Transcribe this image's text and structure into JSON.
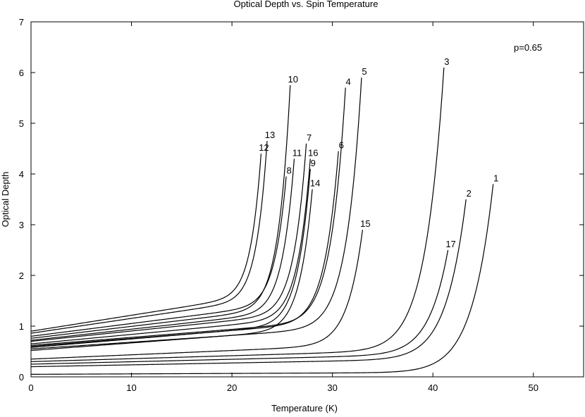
{
  "chart_data": {
    "type": "line",
    "title": "Optical Depth vs. Spin Temperature",
    "xlabel": "Temperature (K)",
    "ylabel": "Optical Depth",
    "xlim": [
      0,
      55
    ],
    "ylim": [
      0,
      7
    ],
    "xticks": [
      0,
      10,
      20,
      30,
      40,
      50
    ],
    "yticks": [
      0,
      1,
      2,
      3,
      4,
      5,
      6,
      7
    ],
    "grid": false,
    "annotation": "p=0.65",
    "series": [
      {
        "name": "1",
        "x0": 0,
        "y0": 0.05,
        "t_end": 46.0,
        "y_end": 3.8
      },
      {
        "name": "2",
        "x0": 0,
        "y0": 0.2,
        "t_end": 43.3,
        "y_end": 3.5
      },
      {
        "name": "3",
        "x0": 0,
        "y0": 0.3,
        "t_end": 41.1,
        "y_end": 6.1
      },
      {
        "name": "4",
        "x0": 0,
        "y0": 0.62,
        "t_end": 31.3,
        "y_end": 5.7
      },
      {
        "name": "5",
        "x0": 0,
        "y0": 0.55,
        "t_end": 32.9,
        "y_end": 5.9
      },
      {
        "name": "6",
        "x0": 0,
        "y0": 0.6,
        "t_end": 30.6,
        "y_end": 4.45
      },
      {
        "name": "7",
        "x0": 0,
        "y0": 0.7,
        "t_end": 27.4,
        "y_end": 4.6
      },
      {
        "name": "8",
        "x0": 0,
        "y0": 0.8,
        "t_end": 25.4,
        "y_end": 3.95
      },
      {
        "name": "9",
        "x0": 0,
        "y0": 0.58,
        "t_end": 27.8,
        "y_end": 4.1
      },
      {
        "name": "10",
        "x0": 0,
        "y0": 0.76,
        "t_end": 25.8,
        "y_end": 5.75
      },
      {
        "name": "11",
        "x0": 0,
        "y0": 0.72,
        "t_end": 26.2,
        "y_end": 4.3
      },
      {
        "name": "12",
        "x0": 0,
        "y0": 0.9,
        "t_end": 22.9,
        "y_end": 4.4
      },
      {
        "name": "13",
        "x0": 0,
        "y0": 0.86,
        "t_end": 23.5,
        "y_end": 4.65
      },
      {
        "name": "14",
        "x0": 0,
        "y0": 0.52,
        "t_end": 28.0,
        "y_end": 3.7
      },
      {
        "name": "15",
        "x0": 0,
        "y0": 0.35,
        "t_end": 33.0,
        "y_end": 2.9
      },
      {
        "name": "16",
        "x0": 0,
        "y0": 0.65,
        "t_end": 27.8,
        "y_end": 4.3
      },
      {
        "name": "17",
        "x0": 0,
        "y0": 0.25,
        "t_end": 41.5,
        "y_end": 2.5
      }
    ]
  }
}
